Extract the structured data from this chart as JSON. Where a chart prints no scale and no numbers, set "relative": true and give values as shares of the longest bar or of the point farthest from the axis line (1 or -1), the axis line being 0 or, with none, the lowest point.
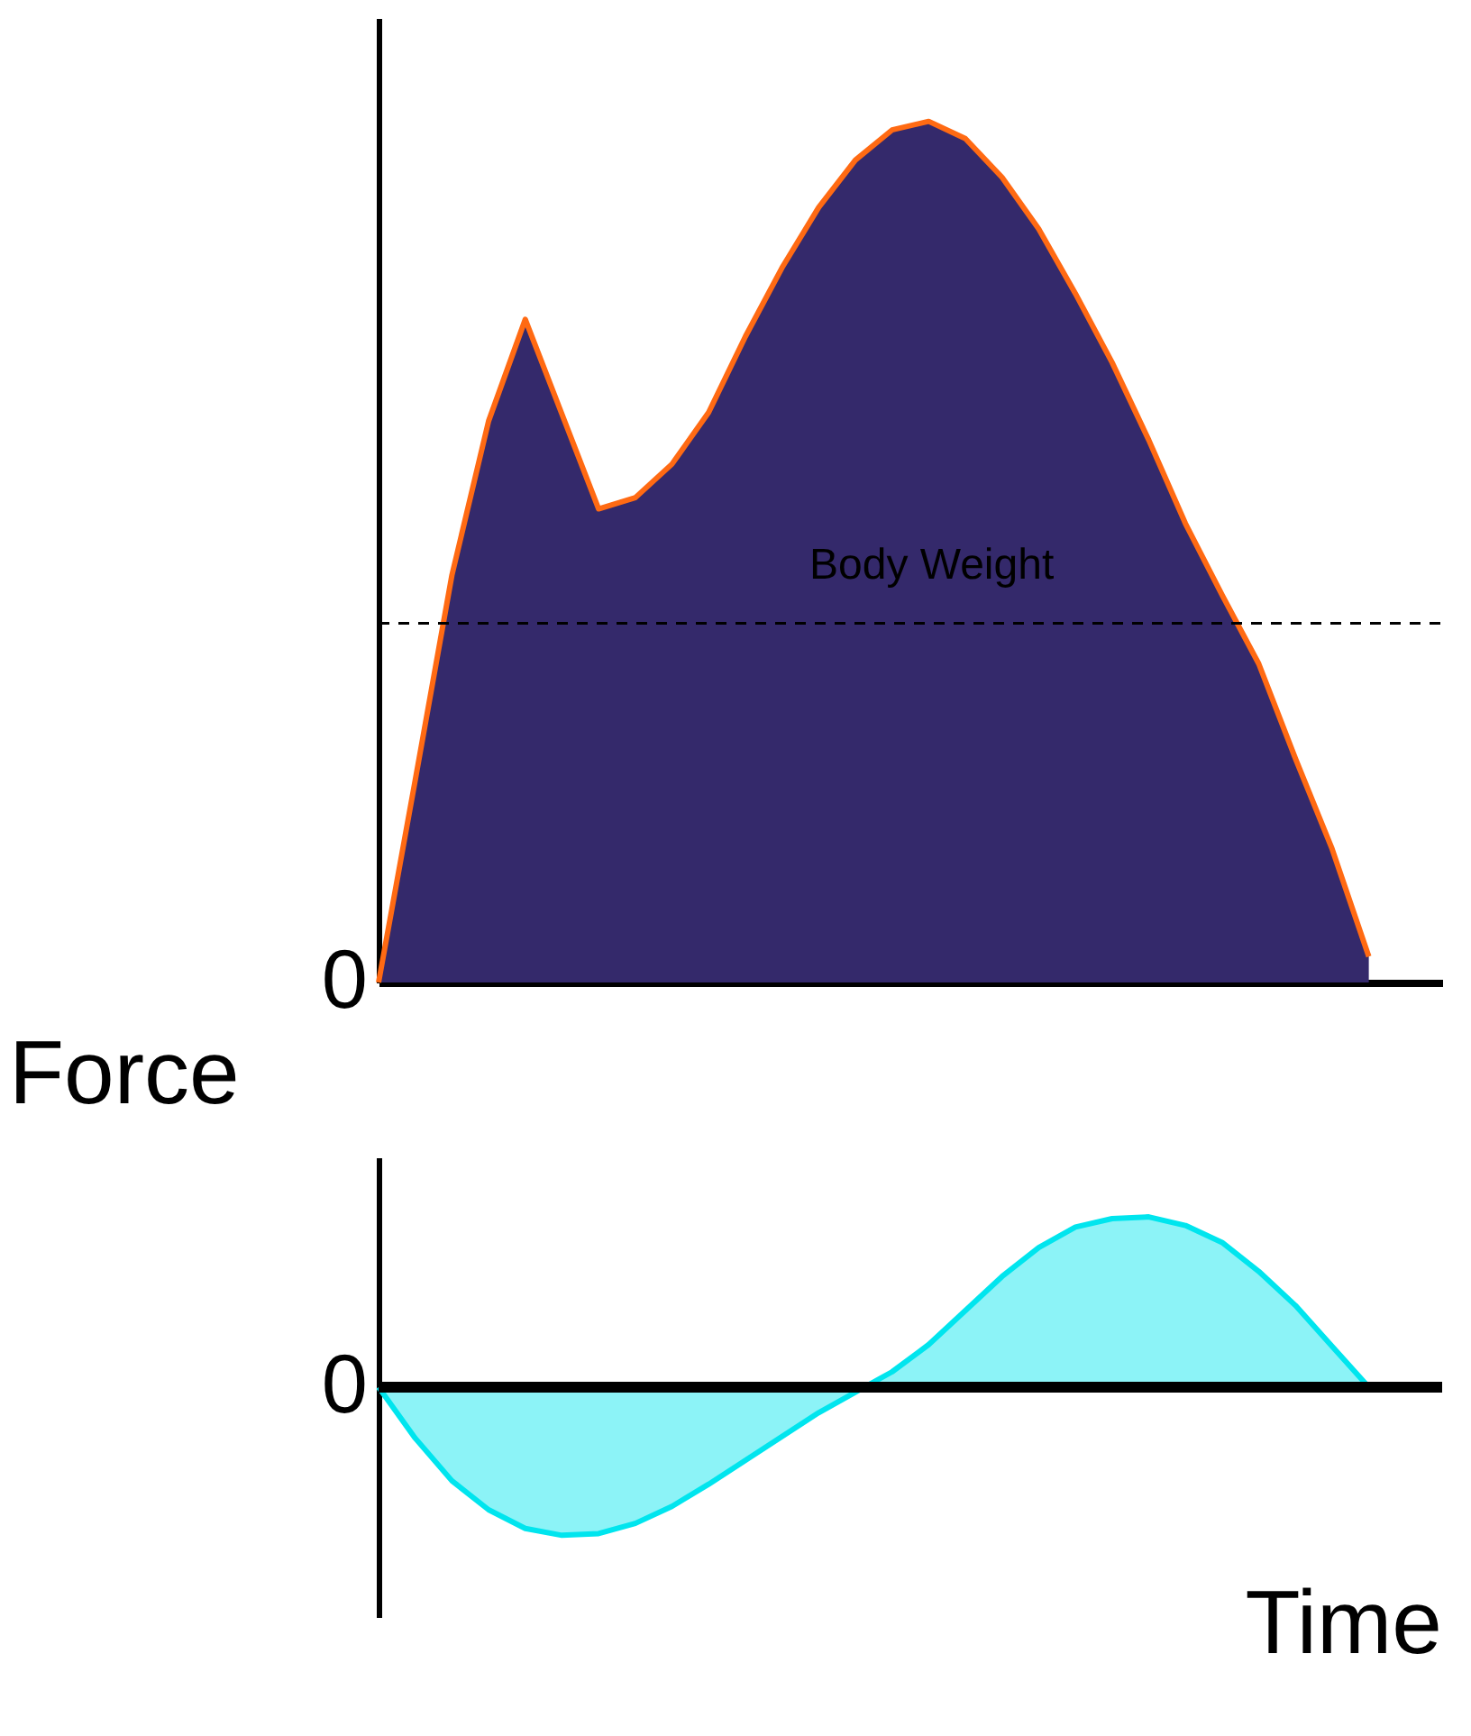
{
  "chart_data": [
    {
      "type": "area",
      "relative": true,
      "ylabel": "Force",
      "tick_labels": false,
      "categories": [
        null,
        null,
        null,
        null,
        null,
        null,
        null,
        null,
        null,
        null,
        null,
        null,
        null,
        null,
        null,
        null,
        null,
        null,
        null,
        null,
        null,
        null,
        null,
        null,
        null,
        null,
        null,
        null,
        null,
        null
      ],
      "series": [
        {
          "color": "#34296b",
          "values": [
            0,
            0.235,
            0.473,
            0.652,
            0.77,
            0.66,
            0.55,
            0.563,
            0.602,
            0.662,
            0.75,
            0.83,
            0.9,
            0.955,
            0.99,
            1,
            0.98,
            0.935,
            0.875,
            0.8,
            0.72,
            0.63,
            0.533,
            0.45,
            0.37,
            0.26,
            0.155,
            0.03,
            null,
            null
          ]
        }
      ],
      "annotations": [
        "0"
      ],
      "ref_lines": [
        {
          "axis": "y",
          "value": 0.417,
          "label": "Body Weight",
          "line_style": "dashed",
          "color": "#000000"
        }
      ]
    },
    {
      "type": "area",
      "relative": true,
      "xlabel": "Time",
      "tick_labels": false,
      "categories": [
        null,
        null,
        null,
        null,
        null,
        null,
        null,
        null,
        null,
        null,
        null,
        null,
        null,
        null,
        null,
        null,
        null,
        null,
        null,
        null,
        null,
        null,
        null,
        null,
        null,
        null,
        null,
        null,
        null,
        null
      ],
      "series": [
        {
          "color": "#00e5ee",
          "values": [
            0,
            -0.3,
            -0.55,
            -0.72,
            -0.83,
            -0.87,
            -0.86,
            -0.8,
            -0.7,
            -0.57,
            -0.43,
            -0.29,
            -0.15,
            -0.03,
            0.09,
            0.25,
            0.45,
            0.65,
            0.82,
            0.94,
            0.99,
            1,
            0.95,
            0.85,
            0.68,
            0.48,
            0.24,
            0,
            null,
            null
          ]
        }
      ],
      "annotations": [
        "0"
      ]
    }
  ]
}
